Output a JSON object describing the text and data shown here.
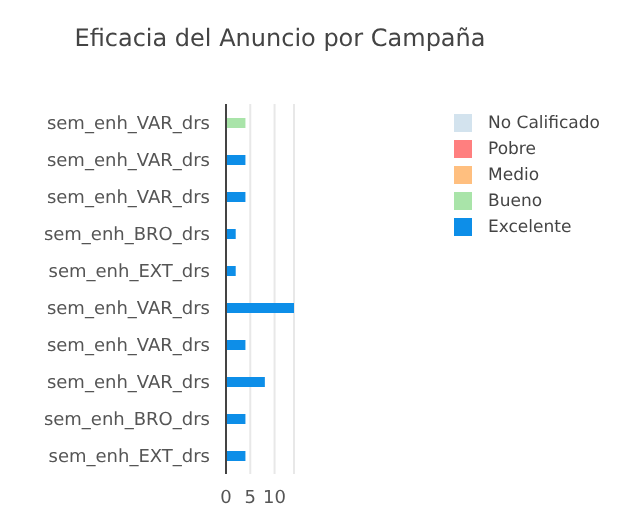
{
  "chart_data": {
    "type": "bar",
    "orientation": "horizontal",
    "stacked": true,
    "title": "Eficacia del Anuncio por Campaña",
    "categories": [
      "sem_enh_VAR_drs",
      "sem_enh_VAR_drs",
      "sem_enh_VAR_drs",
      "sem_enh_BRO_drs",
      "sem_enh_EXT_drs",
      "sem_enh_VAR_drs",
      "sem_enh_VAR_drs",
      "sem_enh_VAR_drs",
      "sem_enh_BRO_drs",
      "sem_enh_EXT_drs"
    ],
    "series": [
      {
        "name": "No Calificado",
        "color": "#d3e3ee",
        "values": [
          null,
          null,
          null,
          null,
          null,
          null,
          null,
          null,
          null,
          null
        ]
      },
      {
        "name": "Pobre",
        "color": "#ff7f7f",
        "values": [
          null,
          null,
          null,
          null,
          null,
          null,
          null,
          null,
          null,
          null
        ]
      },
      {
        "name": "Medio",
        "color": "#ffbf7f",
        "values": [
          null,
          null,
          null,
          null,
          null,
          null,
          null,
          null,
          null,
          null
        ]
      },
      {
        "name": "Bueno",
        "color": "#a9e4a9",
        "values": [
          4,
          null,
          null,
          null,
          null,
          null,
          null,
          null,
          null,
          null
        ]
      },
      {
        "name": "Excelente",
        "color": "#0d8ee8",
        "values": [
          null,
          4,
          4,
          2,
          2,
          14,
          4,
          8,
          4,
          4
        ]
      }
    ],
    "xlim": [
      0,
      14
    ],
    "xticks": [
      0,
      5,
      10
    ],
    "grid": "x",
    "legend": "top right"
  }
}
